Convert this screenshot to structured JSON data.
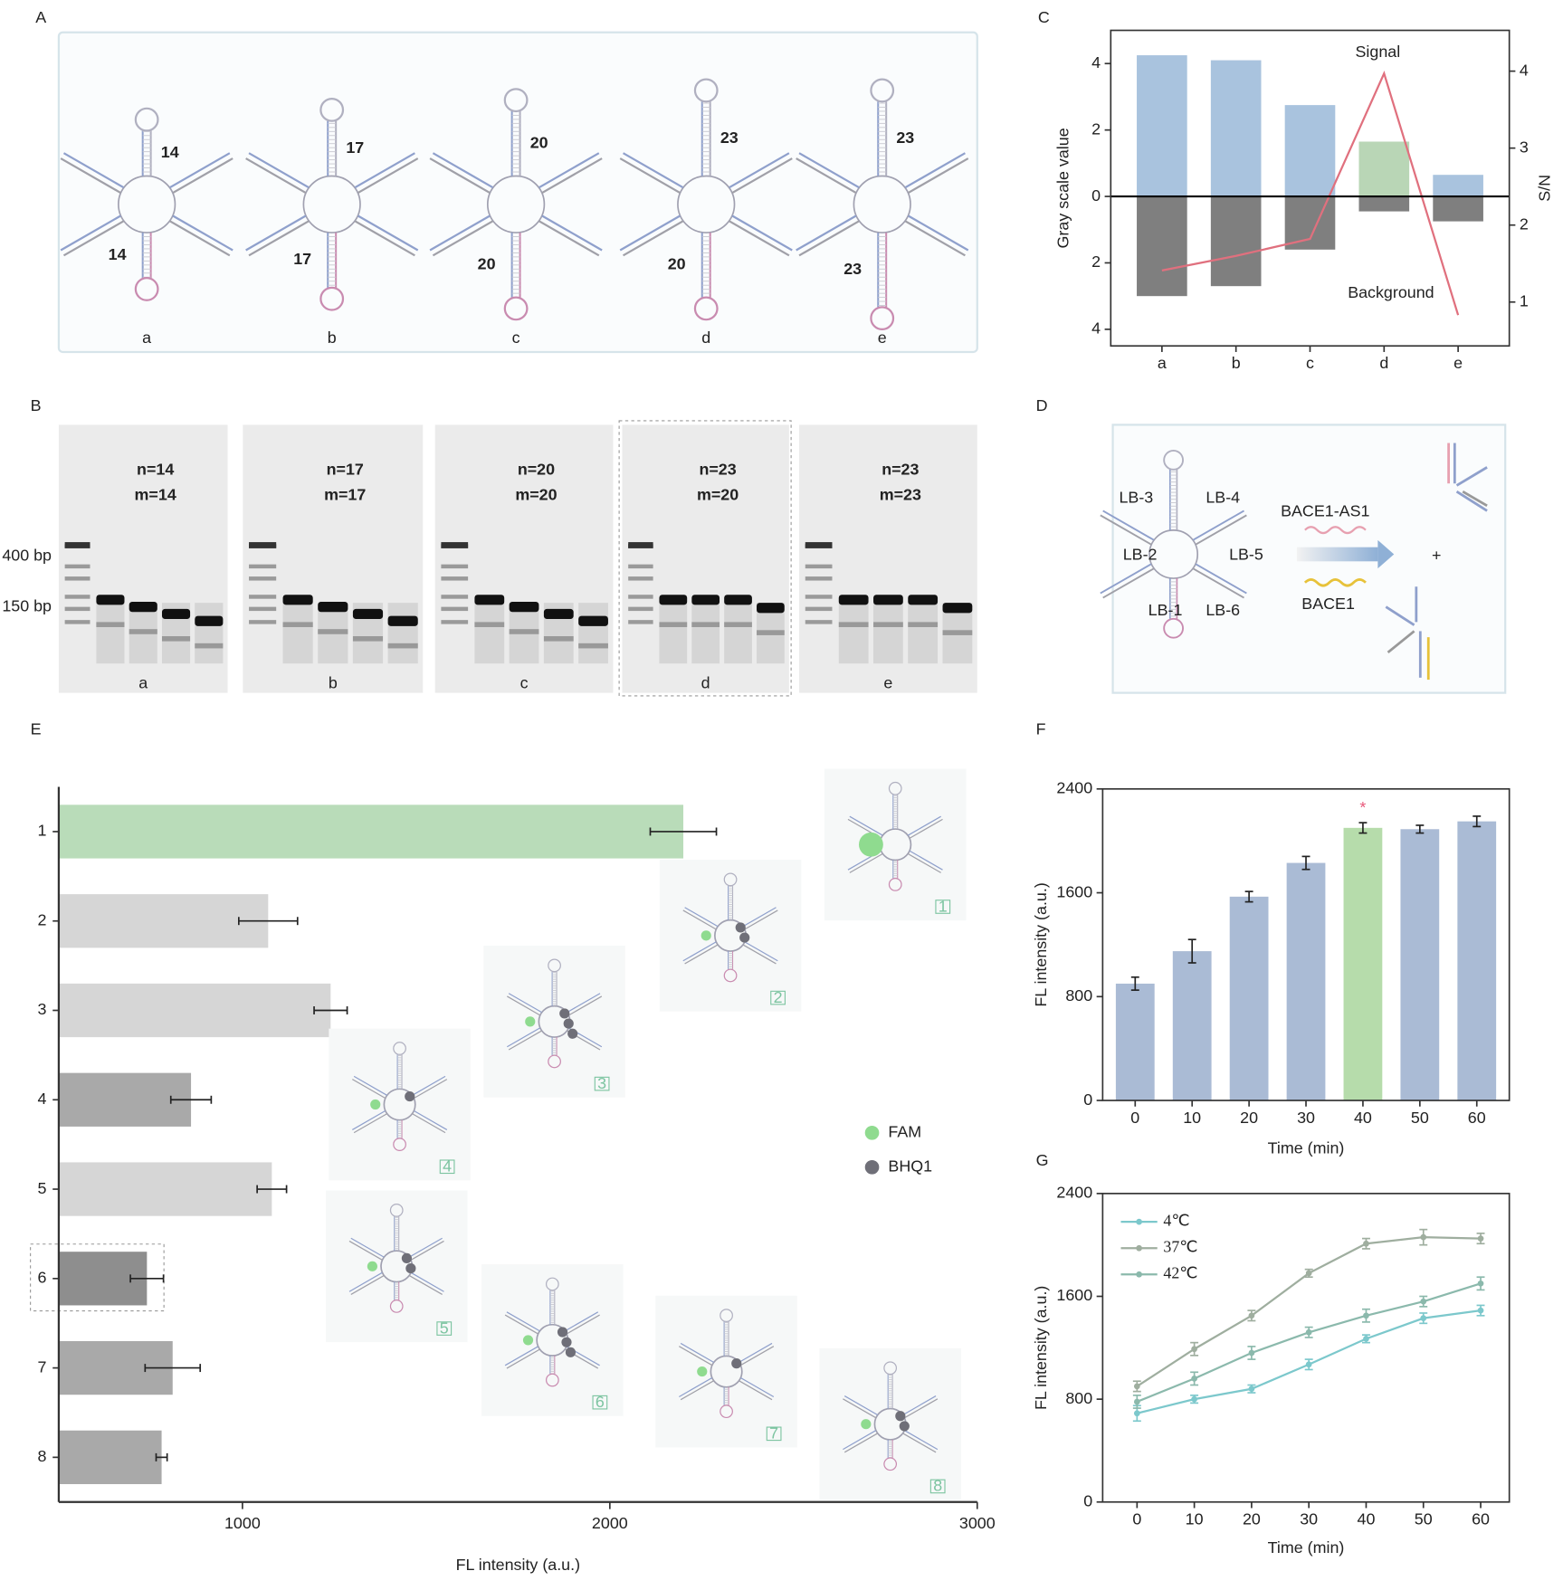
{
  "panel_labels": [
    "A",
    "B",
    "C",
    "D",
    "E",
    "F",
    "G"
  ],
  "panel_a": {
    "constructs": [
      {
        "label": "a",
        "n": 14,
        "m": 14
      },
      {
        "label": "b",
        "n": 17,
        "m": 17
      },
      {
        "label": "c",
        "n": 20,
        "m": 20
      },
      {
        "label": "d",
        "n": 23,
        "m": 20
      },
      {
        "label": "e",
        "n": 23,
        "m": 23
      }
    ]
  },
  "panel_b": {
    "ladder": [
      "400 bp",
      "150 bp"
    ],
    "gels": [
      {
        "label": "a",
        "n": "n=14",
        "m": "m=14"
      },
      {
        "label": "b",
        "n": "n=17",
        "m": "m=17"
      },
      {
        "label": "c",
        "n": "n=20",
        "m": "m=20"
      },
      {
        "label": "d",
        "n": "n=23",
        "m": "m=20"
      },
      {
        "label": "e",
        "n": "n=23",
        "m": "m=23"
      }
    ]
  },
  "panel_d": {
    "strands": [
      "LB-3",
      "LB-4",
      "LB-2",
      "LB-5",
      "LB-1",
      "LB-6"
    ],
    "targets": [
      "BACE1-AS1",
      "BACE1"
    ],
    "plus": "+"
  },
  "chart_data": [
    {
      "type": "bar",
      "ylabel": "Gray scale value",
      "y2label": "S/N",
      "categories": [
        "a",
        "b",
        "c",
        "d",
        "e"
      ],
      "series": [
        {
          "name": "Signal",
          "color": "#a9c3de",
          "colors": [
            "#a9c3de",
            "#a9c3de",
            "#a9c3de",
            "#b9d6b6",
            "#a9c3de"
          ],
          "values": [
            4.25,
            4.1,
            2.75,
            1.65,
            0.65
          ]
        },
        {
          "name": "Background",
          "color": "#7f7f7f",
          "values": [
            -3.0,
            -2.7,
            -1.6,
            -0.45,
            -0.75
          ]
        },
        {
          "type": "line",
          "axis": "y2",
          "color": "#e0707e",
          "values": [
            1.41,
            1.6,
            1.82,
            3.97,
            0.83
          ]
        }
      ],
      "ylim": [
        -4.5,
        5
      ],
      "yticks": [
        {
          "value": -4,
          "label": "4"
        },
        {
          "value": -2,
          "label": "2"
        },
        0,
        2,
        4
      ],
      "y2lim": [
        0.43,
        4.53
      ],
      "y2ticks": [
        1,
        2,
        3,
        4
      ]
    },
    {
      "type": "barh",
      "xlabel": "FL intensity (a.u.)",
      "categories": [
        "1",
        "2",
        "3",
        "4",
        "5",
        "6",
        "7",
        "8"
      ],
      "values": [
        2200,
        1070,
        1240,
        860,
        1080,
        740,
        810,
        780
      ],
      "errors": [
        90,
        80,
        45,
        55,
        40,
        45,
        75,
        15
      ],
      "colors": [
        "#b9dcb9",
        "#d6d6d6",
        "#d6d6d6",
        "#a9a9a9",
        "#d6d6d6",
        "#8e8e8e",
        "#a9a9a9",
        "#a9a9a9"
      ],
      "xlim": [
        500,
        3000
      ],
      "xticks": [
        1000,
        2000,
        3000
      ],
      "markers": [
        {
          "name": "FAM",
          "color": "#8fdb8f"
        },
        {
          "name": "BHQ1",
          "color": "#6f6f78"
        }
      ]
    },
    {
      "type": "bar",
      "xlabel": "Time (min)",
      "ylabel": "FL intensity (a.u.)",
      "categories": [
        0,
        10,
        20,
        30,
        40,
        50,
        60
      ],
      "values": [
        900,
        1150,
        1570,
        1830,
        2100,
        2090,
        2150
      ],
      "errors": [
        50,
        90,
        40,
        50,
        40,
        30,
        40
      ],
      "colors": [
        "#aabbd5",
        "#aabbd5",
        "#aabbd5",
        "#aabbd5",
        "#b6dcab",
        "#aabbd5",
        "#aabbd5"
      ],
      "ylim": [
        0,
        2400
      ],
      "yticks": [
        0,
        800,
        1600,
        2400
      ],
      "annotations": [
        {
          "text": "*",
          "x": 40,
          "color": "#e8587a"
        }
      ]
    },
    {
      "type": "line",
      "xlabel": "Time (min)",
      "ylabel": "FL intensity (a.u.)",
      "x": [
        0,
        10,
        20,
        30,
        40,
        50,
        60
      ],
      "series": [
        {
          "name": "4℃",
          "color": "#7cc8cc",
          "values": [
            690,
            800,
            880,
            1070,
            1270,
            1430,
            1490
          ],
          "errors": [
            60,
            30,
            30,
            40,
            30,
            40,
            40
          ]
        },
        {
          "name": "37℃",
          "color": "#9fae9f",
          "values": [
            900,
            1190,
            1450,
            1780,
            2010,
            2060,
            2050
          ],
          "errors": [
            40,
            50,
            40,
            30,
            40,
            60,
            40
          ]
        },
        {
          "name": "42℃",
          "color": "#8bb9ac",
          "values": [
            780,
            960,
            1160,
            1320,
            1450,
            1560,
            1700
          ],
          "errors": [
            50,
            50,
            50,
            40,
            50,
            40,
            50
          ]
        }
      ],
      "xlim": [
        -6,
        65
      ],
      "xticks": [
        0,
        10,
        20,
        30,
        40,
        50,
        60
      ],
      "ylim": [
        0,
        2400
      ],
      "yticks": [
        0,
        800,
        1600,
        2400
      ],
      "legend": "upper left"
    }
  ]
}
